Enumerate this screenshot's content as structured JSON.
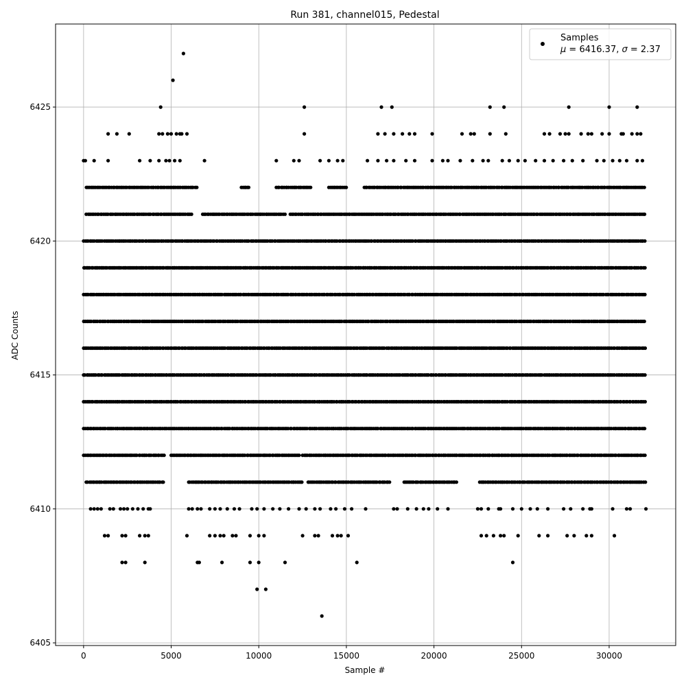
{
  "chart_data": {
    "type": "scatter",
    "title": "Run 381, channel015, Pedestal",
    "xlabel": "Sample #",
    "ylabel": "ADC Counts",
    "xlim": [
      -1600,
      33800
    ],
    "ylim": [
      6404.9,
      6428.1
    ],
    "xticks": [
      0,
      5000,
      10000,
      15000,
      20000,
      25000,
      30000
    ],
    "yticks": [
      6405,
      6410,
      6415,
      6420,
      6425
    ],
    "grid": true,
    "legend_position": "top-right",
    "marker_color": "#000000",
    "grid_color": "#b0b0b0",
    "legend": {
      "label": "Samples",
      "mu_label": "μ",
      "mu_value": "6416.37",
      "sigma_label": "σ",
      "sigma_value": "2.37"
    },
    "series": [
      {
        "name": "Samples",
        "level_coverage": [
          {
            "y": 6411,
            "ranges": [
              [
                150,
                4600
              ],
              [
                6000,
                12500
              ],
              [
                12800,
                17500
              ],
              [
                18300,
                21300
              ],
              [
                22600,
                32100
              ]
            ]
          },
          {
            "y": 6412,
            "ranges": [
              [
                0,
                4600
              ],
              [
                5000,
                12300
              ],
              [
                12500,
                32100
              ]
            ]
          },
          {
            "y": 6413,
            "ranges": [
              [
                0,
                32100
              ]
            ]
          },
          {
            "y": 6414,
            "ranges": [
              [
                0,
                32100
              ]
            ]
          },
          {
            "y": 6415,
            "ranges": [
              [
                0,
                32100
              ]
            ]
          },
          {
            "y": 6416,
            "ranges": [
              [
                0,
                32100
              ]
            ]
          },
          {
            "y": 6417,
            "ranges": [
              [
                0,
                32100
              ]
            ]
          },
          {
            "y": 6418,
            "ranges": [
              [
                0,
                32100
              ]
            ]
          },
          {
            "y": 6419,
            "ranges": [
              [
                0,
                32100
              ]
            ]
          },
          {
            "y": 6420,
            "ranges": [
              [
                0,
                32100
              ]
            ]
          },
          {
            "y": 6421,
            "ranges": [
              [
                150,
                6200
              ],
              [
                6800,
                11500
              ],
              [
                11800,
                32100
              ]
            ]
          },
          {
            "y": 6422,
            "ranges": [
              [
                150,
                6500
              ],
              [
                9000,
                9500
              ],
              [
                11000,
                13000
              ],
              [
                14000,
                15000
              ],
              [
                16000,
                32100
              ]
            ]
          }
        ],
        "points": [
          [
            0,
            6423
          ],
          [
            100,
            6423
          ],
          [
            600,
            6423
          ],
          [
            1400,
            6423
          ],
          [
            3200,
            6423
          ],
          [
            3800,
            6423
          ],
          [
            4300,
            6423
          ],
          [
            4700,
            6423
          ],
          [
            4900,
            6423
          ],
          [
            5200,
            6423
          ],
          [
            5500,
            6423
          ],
          [
            6900,
            6423
          ],
          [
            11000,
            6423
          ],
          [
            12000,
            6423
          ],
          [
            12300,
            6423
          ],
          [
            13500,
            6423
          ],
          [
            14000,
            6423
          ],
          [
            14500,
            6423
          ],
          [
            14800,
            6423
          ],
          [
            16200,
            6423
          ],
          [
            16800,
            6423
          ],
          [
            17300,
            6423
          ],
          [
            17700,
            6423
          ],
          [
            18400,
            6423
          ],
          [
            18900,
            6423
          ],
          [
            19900,
            6423
          ],
          [
            20500,
            6423
          ],
          [
            20800,
            6423
          ],
          [
            21500,
            6423
          ],
          [
            22200,
            6423
          ],
          [
            22800,
            6423
          ],
          [
            23100,
            6423
          ],
          [
            23900,
            6423
          ],
          [
            24300,
            6423
          ],
          [
            24800,
            6423
          ],
          [
            25200,
            6423
          ],
          [
            25800,
            6423
          ],
          [
            26300,
            6423
          ],
          [
            26800,
            6423
          ],
          [
            27400,
            6423
          ],
          [
            27900,
            6423
          ],
          [
            28500,
            6423
          ],
          [
            29300,
            6423
          ],
          [
            29700,
            6423
          ],
          [
            30200,
            6423
          ],
          [
            30600,
            6423
          ],
          [
            31000,
            6423
          ],
          [
            31600,
            6423
          ],
          [
            31900,
            6423
          ],
          [
            1400,
            6424
          ],
          [
            1900,
            6424
          ],
          [
            2600,
            6424
          ],
          [
            4300,
            6424
          ],
          [
            4500,
            6424
          ],
          [
            4800,
            6424
          ],
          [
            5000,
            6424
          ],
          [
            5300,
            6424
          ],
          [
            5500,
            6424
          ],
          [
            5600,
            6424
          ],
          [
            5900,
            6424
          ],
          [
            12600,
            6424
          ],
          [
            16800,
            6424
          ],
          [
            17200,
            6424
          ],
          [
            17700,
            6424
          ],
          [
            18200,
            6424
          ],
          [
            18600,
            6424
          ],
          [
            18900,
            6424
          ],
          [
            19900,
            6424
          ],
          [
            21600,
            6424
          ],
          [
            22100,
            6424
          ],
          [
            22300,
            6424
          ],
          [
            23200,
            6424
          ],
          [
            24100,
            6424
          ],
          [
            26300,
            6424
          ],
          [
            26600,
            6424
          ],
          [
            27200,
            6424
          ],
          [
            27500,
            6424
          ],
          [
            27700,
            6424
          ],
          [
            28400,
            6424
          ],
          [
            28800,
            6424
          ],
          [
            29000,
            6424
          ],
          [
            29600,
            6424
          ],
          [
            30000,
            6424
          ],
          [
            30700,
            6424
          ],
          [
            30800,
            6424
          ],
          [
            31300,
            6424
          ],
          [
            31600,
            6424
          ],
          [
            31800,
            6424
          ],
          [
            4400,
            6425
          ],
          [
            12600,
            6425
          ],
          [
            17000,
            6425
          ],
          [
            17600,
            6425
          ],
          [
            23200,
            6425
          ],
          [
            24000,
            6425
          ],
          [
            27700,
            6425
          ],
          [
            30000,
            6425
          ],
          [
            31600,
            6425
          ],
          [
            5100,
            6426
          ],
          [
            5700,
            6427
          ],
          [
            400,
            6410
          ],
          [
            600,
            6410
          ],
          [
            800,
            6410
          ],
          [
            1000,
            6410
          ],
          [
            1500,
            6410
          ],
          [
            1700,
            6410
          ],
          [
            2100,
            6410
          ],
          [
            2300,
            6410
          ],
          [
            2500,
            6410
          ],
          [
            2800,
            6410
          ],
          [
            3100,
            6410
          ],
          [
            3400,
            6410
          ],
          [
            3700,
            6410
          ],
          [
            3800,
            6410
          ],
          [
            6000,
            6410
          ],
          [
            6200,
            6410
          ],
          [
            6500,
            6410
          ],
          [
            6700,
            6410
          ],
          [
            7200,
            6410
          ],
          [
            7500,
            6410
          ],
          [
            7800,
            6410
          ],
          [
            8200,
            6410
          ],
          [
            8600,
            6410
          ],
          [
            8900,
            6410
          ],
          [
            9600,
            6410
          ],
          [
            9900,
            6410
          ],
          [
            10300,
            6410
          ],
          [
            10800,
            6410
          ],
          [
            11200,
            6410
          ],
          [
            11700,
            6410
          ],
          [
            12300,
            6410
          ],
          [
            12700,
            6410
          ],
          [
            13200,
            6410
          ],
          [
            13500,
            6410
          ],
          [
            14100,
            6410
          ],
          [
            14400,
            6410
          ],
          [
            14900,
            6410
          ],
          [
            15300,
            6410
          ],
          [
            16100,
            6410
          ],
          [
            17700,
            6410
          ],
          [
            17900,
            6410
          ],
          [
            18500,
            6410
          ],
          [
            19000,
            6410
          ],
          [
            19400,
            6410
          ],
          [
            19700,
            6410
          ],
          [
            20200,
            6410
          ],
          [
            20800,
            6410
          ],
          [
            22500,
            6410
          ],
          [
            22700,
            6410
          ],
          [
            23100,
            6410
          ],
          [
            23700,
            6410
          ],
          [
            23800,
            6410
          ],
          [
            24500,
            6410
          ],
          [
            25000,
            6410
          ],
          [
            25500,
            6410
          ],
          [
            25900,
            6410
          ],
          [
            26500,
            6410
          ],
          [
            27400,
            6410
          ],
          [
            27800,
            6410
          ],
          [
            28500,
            6410
          ],
          [
            28900,
            6410
          ],
          [
            29000,
            6410
          ],
          [
            30200,
            6410
          ],
          [
            31000,
            6410
          ],
          [
            31200,
            6410
          ],
          [
            32100,
            6410
          ],
          [
            1200,
            6409
          ],
          [
            1400,
            6409
          ],
          [
            2200,
            6409
          ],
          [
            2400,
            6409
          ],
          [
            3200,
            6409
          ],
          [
            3500,
            6409
          ],
          [
            3700,
            6409
          ],
          [
            5900,
            6409
          ],
          [
            7200,
            6409
          ],
          [
            7500,
            6409
          ],
          [
            7800,
            6409
          ],
          [
            8000,
            6409
          ],
          [
            8500,
            6409
          ],
          [
            8700,
            6409
          ],
          [
            9500,
            6409
          ],
          [
            10000,
            6409
          ],
          [
            10300,
            6409
          ],
          [
            12500,
            6409
          ],
          [
            13200,
            6409
          ],
          [
            13400,
            6409
          ],
          [
            14200,
            6409
          ],
          [
            14500,
            6409
          ],
          [
            14700,
            6409
          ],
          [
            15100,
            6409
          ],
          [
            22700,
            6409
          ],
          [
            23000,
            6409
          ],
          [
            23400,
            6409
          ],
          [
            23800,
            6409
          ],
          [
            24000,
            6409
          ],
          [
            24800,
            6409
          ],
          [
            26000,
            6409
          ],
          [
            26500,
            6409
          ],
          [
            27600,
            6409
          ],
          [
            28000,
            6409
          ],
          [
            28700,
            6409
          ],
          [
            29000,
            6409
          ],
          [
            30300,
            6409
          ],
          [
            2200,
            6408
          ],
          [
            2400,
            6408
          ],
          [
            3500,
            6408
          ],
          [
            6500,
            6408
          ],
          [
            6600,
            6408
          ],
          [
            7900,
            6408
          ],
          [
            9500,
            6408
          ],
          [
            10000,
            6408
          ],
          [
            11500,
            6408
          ],
          [
            15600,
            6408
          ],
          [
            24500,
            6408
          ],
          [
            9900,
            6407
          ],
          [
            10400,
            6407
          ],
          [
            13600,
            6406
          ]
        ]
      }
    ]
  }
}
